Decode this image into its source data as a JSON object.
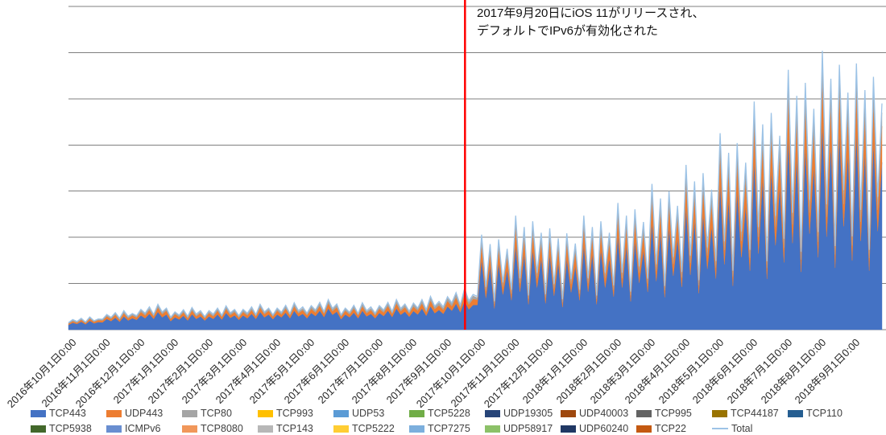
{
  "chart_data": {
    "type": "area",
    "stacked": true,
    "title": "",
    "annotation": {
      "line1": "2017年9月20日にiOS 11がリリースされ、",
      "line2": "デフォルトでIPv6が有効化された"
    },
    "red_line": {
      "color": "#FF0000",
      "sample_index": 93.1,
      "refers_to": "2017年9月20日"
    },
    "x_axis": {
      "samples_per_month": 8,
      "labels": [
        "2016年10月1日0:00",
        "2016年11月1日0:00",
        "2016年12月1日0:00",
        "2017年1月1日0:00",
        "2017年2月1日0:00",
        "2017年3月1日0:00",
        "2017年4月1日0:00",
        "2017年5月1日0:00",
        "2017年6月1日0:00",
        "2017年7月1日0:00",
        "2017年8月1日0:00",
        "2017年9月1日0:00",
        "2017年10月1日0:00",
        "2017年11月1日0:00",
        "2017年12月1日0:00",
        "2018年1月1日0:00",
        "2018年2月1日0:00",
        "2018年3月1日0:00",
        "2018年4月1日0:00",
        "2018年5月1日0:00",
        "2018年6月1日0:00",
        "2018年7月1日0:00",
        "2018年8月1日0:00",
        "2018年9月1日0:00"
      ]
    },
    "y_axis": {
      "max": 102,
      "gridlines": 8,
      "labels_visible": false
    },
    "legend": {
      "position": "bottom",
      "columns": 11
    },
    "series": [
      {
        "name": "TCP443",
        "color": "#4472C4",
        "type": "area",
        "values": [
          1.5,
          2.2,
          1.8,
          2.5,
          1.7,
          2.8,
          2.0,
          2.4,
          2.3,
          3.4,
          2.7,
          3.8,
          2.5,
          4.2,
          2.9,
          3.6,
          3.1,
          4.5,
          3.6,
          5.0,
          3.4,
          5.6,
          3.9,
          4.8,
          2.7,
          3.9,
          3.2,
          4.4,
          2.9,
          4.9,
          3.4,
          4.2,
          2.9,
          4.2,
          3.4,
          4.8,
          3.2,
          5.3,
          3.7,
          4.5,
          3.1,
          4.5,
          3.6,
          5.0,
          3.4,
          5.6,
          3.9,
          4.8,
          3.3,
          4.8,
          3.9,
          5.4,
          3.6,
          6.0,
          4.2,
          5.0,
          3.6,
          5.3,
          4.3,
          6.0,
          4.0,
          6.7,
          4.7,
          5.7,
          3.3,
          4.8,
          3.9,
          5.4,
          3.6,
          6.0,
          4.2,
          5.0,
          3.6,
          5.3,
          4.3,
          6.0,
          4.0,
          6.7,
          4.7,
          5.7,
          4.1,
          5.9,
          4.8,
          6.7,
          4.4,
          7.4,
          5.2,
          6.2,
          5.0,
          7.3,
          6.0,
          8.2,
          5.5,
          9.1,
          6.4,
          7.8,
          7.8,
          22.2,
          10.0,
          20.0,
          6.7,
          21.1,
          11.1,
          18.9,
          9.3,
          26.6,
          12.0,
          24.0,
          8.0,
          25.3,
          13.3,
          22.6,
          8.3,
          23.7,
          10.7,
          21.3,
          7.1,
          22.5,
          11.8,
          20.1,
          9.3,
          26.6,
          12.0,
          24.0,
          8.0,
          25.3,
          13.3,
          22.6,
          10.4,
          29.6,
          13.3,
          26.6,
          8.9,
          28.1,
          14.8,
          25.2,
          11.9,
          34.0,
          15.3,
          30.6,
          10.2,
          32.3,
          17.0,
          28.9,
          13.5,
          38.5,
          17.3,
          34.6,
          11.5,
          36.6,
          19.2,
          32.7,
          16.1,
          45.9,
          20.6,
          41.3,
          13.8,
          43.6,
          22.9,
          39.0,
          18.6,
          53.3,
          24.0,
          48.0,
          16.0,
          50.6,
          26.6,
          45.3,
          21.2,
          60.7,
          27.3,
          54.6,
          18.2,
          57.6,
          30.3,
          51.6,
          22.8,
          65.1,
          29.3,
          58.6,
          19.5,
          61.9,
          32.6,
          55.4,
          21.8,
          62.2,
          28.0,
          55.9,
          18.6,
          59.1,
          31.1,
          52.8
        ]
      },
      {
        "name": "UDP443",
        "color": "#ED7D31",
        "type": "area",
        "values": [
          0.4,
          0.5,
          0.4,
          0.6,
          0.4,
          0.7,
          0.5,
          0.6,
          0.6,
          0.8,
          0.7,
          0.9,
          0.6,
          1.0,
          0.7,
          0.9,
          0.7,
          1.1,
          0.9,
          1.2,
          0.8,
          1.4,
          1.0,
          1.2,
          0.7,
          1.0,
          0.8,
          1.1,
          0.7,
          1.2,
          0.8,
          1.0,
          0.7,
          1.0,
          0.8,
          1.2,
          0.8,
          1.3,
          0.9,
          1.1,
          0.7,
          1.1,
          0.9,
          1.2,
          0.8,
          1.4,
          1.0,
          1.2,
          0.8,
          1.2,
          0.9,
          1.3,
          0.9,
          1.4,
          1.0,
          1.2,
          0.9,
          1.3,
          1.1,
          1.5,
          1.0,
          1.6,
          1.1,
          1.4,
          0.8,
          1.2,
          0.9,
          1.3,
          0.9,
          1.4,
          1.0,
          1.2,
          0.9,
          1.3,
          1.1,
          1.5,
          1.0,
          1.6,
          1.1,
          1.4,
          1.0,
          1.4,
          1.2,
          1.6,
          1.1,
          1.8,
          1.3,
          1.5,
          1.2,
          1.8,
          1.4,
          2.0,
          1.3,
          2.2,
          1.5,
          1.9,
          1.7,
          4.8,
          2.2,
          4.3,
          1.4,
          4.6,
          2.4,
          4.1,
          2.0,
          5.8,
          2.6,
          5.2,
          1.7,
          5.5,
          2.9,
          4.9,
          1.8,
          5.1,
          2.3,
          4.6,
          1.5,
          4.9,
          2.6,
          4.4,
          2.0,
          5.8,
          2.6,
          5.2,
          1.7,
          5.5,
          2.9,
          4.9,
          2.2,
          6.4,
          2.9,
          5.8,
          1.9,
          6.1,
          3.2,
          5.4,
          2.6,
          7.4,
          3.3,
          6.6,
          2.2,
          7.0,
          3.7,
          6.3,
          2.9,
          8.3,
          3.7,
          7.5,
          2.5,
          7.9,
          4.2,
          7.1,
          3.5,
          9.9,
          4.5,
          8.9,
          3.0,
          9.4,
          5.0,
          8.4,
          4.0,
          11.5,
          5.2,
          10.4,
          3.5,
          10.9,
          5.8,
          9.8,
          4.6,
          13.1,
          5.9,
          11.8,
          3.9,
          12.5,
          6.6,
          11.2,
          4.9,
          14.1,
          6.3,
          12.7,
          4.2,
          13.4,
          7.0,
          12.0,
          4.7,
          13.4,
          6.0,
          12.1,
          4.0,
          12.8,
          6.7,
          11.4
        ]
      },
      {
        "name": "TCP80",
        "color": "#A5A5A5",
        "type": "area",
        "values": [
          0.2,
          0.3,
          0.2,
          0.3,
          0.2,
          0.4,
          0.3,
          0.3,
          0.3,
          0.4,
          0.4,
          0.5,
          0.3,
          0.5,
          0.4,
          0.5,
          0.4,
          0.6,
          0.5,
          0.6,
          0.4,
          0.7,
          0.5,
          0.6,
          0.4,
          0.5,
          0.4,
          0.6,
          0.4,
          0.6,
          0.4,
          0.5,
          0.4,
          0.5,
          0.4,
          0.6,
          0.4,
          0.7,
          0.5,
          0.6,
          0.4,
          0.6,
          0.5,
          0.6,
          0.4,
          0.7,
          0.5,
          0.6,
          0.4,
          0.6,
          0.5,
          0.7,
          0.5,
          0.8,
          0.5,
          0.6,
          0.5,
          0.7,
          0.6,
          0.8,
          0.5,
          0.9,
          0.6,
          0.7,
          0.4,
          0.6,
          0.5,
          0.7,
          0.5,
          0.8,
          0.5,
          0.6,
          0.5,
          0.7,
          0.6,
          0.8,
          0.5,
          0.9,
          0.6,
          0.7,
          0.5,
          0.8,
          0.6,
          0.9,
          0.6,
          0.9,
          0.7,
          0.8,
          0.6,
          0.9,
          0.8,
          1.1,
          0.7,
          1.2,
          0.8,
          1.0,
          0.6,
          1.8,
          0.8,
          1.6,
          0.5,
          1.7,
          0.9,
          1.5,
          0.8,
          2.2,
          1.0,
          1.9,
          0.6,
          2.1,
          1.1,
          1.8,
          0.7,
          1.9,
          0.9,
          1.7,
          0.6,
          1.8,
          1.0,
          1.6,
          0.8,
          2.2,
          1.0,
          1.9,
          0.6,
          2.1,
          1.1,
          1.8,
          0.8,
          2.4,
          1.1,
          2.2,
          0.7,
          2.3,
          1.2,
          2.0,
          1.0,
          2.8,
          1.2,
          2.5,
          0.8,
          2.6,
          1.4,
          2.3,
          1.1,
          3.1,
          1.4,
          2.8,
          0.9,
          3.0,
          1.6,
          2.7,
          1.3,
          3.7,
          1.7,
          3.3,
          1.1,
          3.5,
          1.9,
          3.2,
          1.5,
          4.3,
          1.9,
          3.9,
          1.3,
          4.1,
          2.2,
          3.7,
          1.7,
          4.9,
          2.2,
          4.4,
          1.5,
          4.7,
          2.5,
          4.2,
          1.8,
          5.3,
          2.4,
          4.8,
          1.6,
          5.0,
          2.6,
          4.5,
          1.8,
          5.0,
          2.3,
          4.5,
          1.5,
          4.8,
          2.5,
          4.3
        ]
      },
      {
        "name": "TCP993",
        "color": "#FFC000",
        "type": "area",
        "values": [],
        "visible_in_plot": false
      },
      {
        "name": "UDP53",
        "color": "#5B9BD5",
        "type": "area",
        "values": [],
        "visible_in_plot": false
      },
      {
        "name": "TCP5228",
        "color": "#70AD47",
        "type": "area",
        "values": [],
        "visible_in_plot": false
      },
      {
        "name": "UDP19305",
        "color": "#264478",
        "type": "area",
        "values": [],
        "visible_in_plot": false
      },
      {
        "name": "UDP40003",
        "color": "#9E480E",
        "type": "area",
        "values": [],
        "visible_in_plot": false
      },
      {
        "name": "TCP995",
        "color": "#636363",
        "type": "area",
        "values": [],
        "visible_in_plot": false
      },
      {
        "name": "TCP44187",
        "color": "#997300",
        "type": "area",
        "values": [],
        "visible_in_plot": false
      },
      {
        "name": "TCP110",
        "color": "#255E91",
        "type": "area",
        "values": [],
        "visible_in_plot": false
      },
      {
        "name": "TCP5938",
        "color": "#43682B",
        "type": "area",
        "values": [],
        "visible_in_plot": false
      },
      {
        "name": "ICMPv6",
        "color": "#698ED0",
        "type": "area",
        "values": [],
        "visible_in_plot": false
      },
      {
        "name": "TCP8080",
        "color": "#F1975A",
        "type": "area",
        "values": [],
        "visible_in_plot": false
      },
      {
        "name": "TCP143",
        "color": "#B7B7B7",
        "type": "area",
        "values": [],
        "visible_in_plot": false
      },
      {
        "name": "TCP5222",
        "color": "#FFCD33",
        "type": "area",
        "values": [],
        "visible_in_plot": false
      },
      {
        "name": "TCP7275",
        "color": "#7CAFDD",
        "type": "area",
        "values": [],
        "visible_in_plot": false
      },
      {
        "name": "UDP58917",
        "color": "#8CC168",
        "type": "area",
        "values": [],
        "visible_in_plot": false
      },
      {
        "name": "UDP60240",
        "color": "#203864",
        "type": "area",
        "values": [],
        "visible_in_plot": false
      },
      {
        "name": "TCP22",
        "color": "#C45911",
        "type": "area",
        "values": [],
        "visible_in_plot": false
      },
      {
        "name": "Total",
        "color": "#9DC3E6",
        "type": "line",
        "values": [
          2.2,
          3.2,
          2.6,
          3.6,
          2.4,
          4.0,
          2.8,
          3.4,
          3.3,
          4.8,
          3.9,
          5.4,
          3.6,
          6.0,
          4.2,
          5.1,
          4.4,
          6.4,
          5.2,
          7.2,
          4.8,
          8.0,
          5.6,
          6.8,
          3.9,
          5.6,
          4.6,
          6.3,
          4.2,
          7.0,
          4.9,
          6.0,
          4.1,
          6.0,
          4.9,
          6.8,
          4.5,
          7.5,
          5.3,
          6.4,
          4.4,
          6.4,
          5.2,
          7.2,
          4.8,
          8.0,
          5.6,
          6.8,
          4.7,
          6.8,
          5.5,
          7.7,
          5.1,
          8.5,
          6.0,
          7.2,
          5.2,
          7.6,
          6.2,
          8.6,
          5.7,
          9.5,
          6.7,
          8.1,
          4.7,
          6.8,
          5.5,
          7.7,
          5.1,
          8.5,
          6.0,
          7.2,
          5.2,
          7.6,
          6.2,
          8.6,
          5.7,
          9.5,
          6.7,
          8.1,
          5.8,
          8.4,
          6.8,
          9.5,
          6.3,
          10.5,
          7.4,
          8.9,
          7.2,
          10.4,
          8.5,
          11.7,
          7.8,
          13.0,
          9.1,
          11.1,
          10.5,
          30,
          13.5,
          27,
          9,
          28.5,
          15,
          25.5,
          12.6,
          36,
          16.2,
          32.4,
          10.8,
          34.2,
          18,
          30.6,
          11.2,
          32,
          14.4,
          28.8,
          9.6,
          30.4,
          16,
          27.2,
          12.6,
          36,
          16.2,
          32.4,
          10.8,
          34.2,
          18,
          30.6,
          14,
          40,
          18,
          36,
          12,
          38,
          20,
          34,
          16.1,
          46,
          20.7,
          41.4,
          13.8,
          43.7,
          23,
          39.1,
          18.2,
          52,
          23.4,
          46.8,
          15.6,
          49.4,
          26,
          44.2,
          21.7,
          62,
          27.9,
          55.8,
          18.6,
          58.9,
          31,
          52.7,
          25.2,
          72,
          32.4,
          64.8,
          21.6,
          68.4,
          36,
          61.2,
          28.7,
          82,
          36.9,
          73.8,
          24.6,
          77.9,
          41,
          69.7,
          30.8,
          88,
          39.6,
          79.2,
          26.4,
          83.6,
          44,
          74.8,
          29.4,
          84,
          37.8,
          75.6,
          25.2,
          79.8,
          42,
          71.4
        ]
      }
    ]
  }
}
